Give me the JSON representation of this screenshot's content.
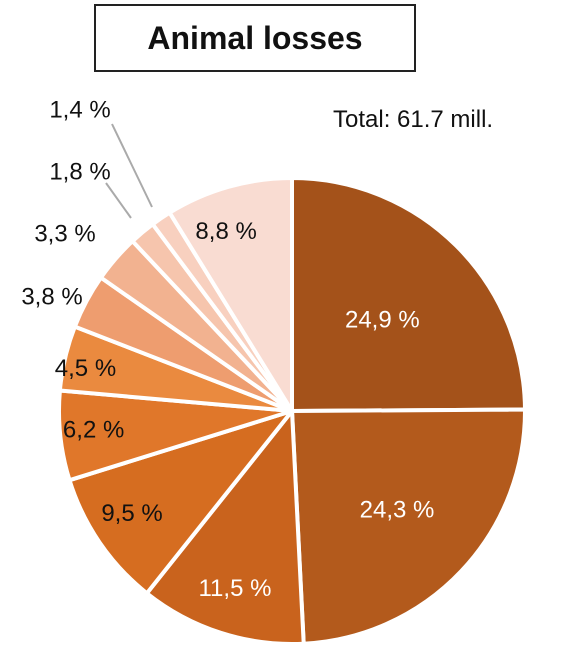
{
  "chart_data": {
    "type": "pie",
    "title": "Animal losses",
    "annotation": "Total: 61.7 mill.",
    "values": [
      24.9,
      24.3,
      11.5,
      9.5,
      6.2,
      4.5,
      3.8,
      3.3,
      1.8,
      1.4,
      8.8
    ],
    "labels": [
      "24,9 %",
      "24,3 %",
      "11,5 %",
      "9,5 %",
      "6,2 %",
      "4,5 %",
      "3,8 %",
      "3,3 %",
      "1,8 %",
      "1,4 %",
      "8,8 %"
    ],
    "colors": [
      "#a4521a",
      "#b35a1c",
      "#c9631d",
      "#d66d20",
      "#e0772a",
      "#ea8a3f",
      "#ee9d6f",
      "#f2b290",
      "#f6c5ad",
      "#f8d0bf",
      "#f9dcd2"
    ],
    "label_colors": [
      "#ffffff",
      "#ffffff",
      "#ffffff",
      "#111111",
      "#111111",
      "#111111",
      "#111111",
      "#111111",
      "#111111",
      "#111111",
      "#111111"
    ],
    "start_angle_deg": 0,
    "direction": "clockwise"
  }
}
